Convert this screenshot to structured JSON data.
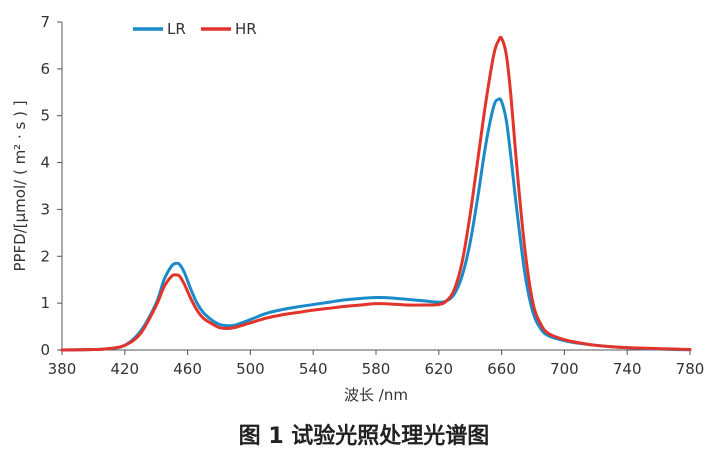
{
  "caption": "图 1 试验光照处理光谱图",
  "chart_data": {
    "type": "line",
    "xlabel": "波长 /nm",
    "ylabel": "PPFD/[μmol/ ( m² · s ) ]",
    "xlim": [
      380,
      780
    ],
    "ylim": [
      0,
      7
    ],
    "xticks": [
      380,
      420,
      460,
      500,
      540,
      580,
      620,
      660,
      700,
      740,
      780
    ],
    "yticks": [
      0,
      1,
      2,
      3,
      4,
      5,
      6,
      7
    ],
    "grid": false,
    "legend_position": "top-left",
    "series": [
      {
        "name": "LR",
        "color": "#1a8ac9",
        "x": [
          380,
          400,
          410,
          420,
          430,
          440,
          445,
          450,
          453,
          455,
          458,
          462,
          466,
          470,
          475,
          480,
          485,
          490,
          500,
          510,
          520,
          530,
          540,
          550,
          560,
          570,
          580,
          590,
          600,
          610,
          620,
          625,
          630,
          635,
          640,
          645,
          650,
          655,
          658,
          660,
          663,
          666,
          670,
          675,
          680,
          685,
          690,
          700,
          710,
          720,
          730,
          740,
          750,
          760,
          770,
          780
        ],
        "y": [
          0,
          0.01,
          0.03,
          0.1,
          0.4,
          1.0,
          1.5,
          1.8,
          1.85,
          1.82,
          1.65,
          1.3,
          1.0,
          0.8,
          0.65,
          0.55,
          0.52,
          0.53,
          0.65,
          0.78,
          0.86,
          0.92,
          0.97,
          1.02,
          1.07,
          1.1,
          1.12,
          1.11,
          1.08,
          1.05,
          1.02,
          1.05,
          1.2,
          1.6,
          2.3,
          3.3,
          4.4,
          5.2,
          5.35,
          5.3,
          4.9,
          4.1,
          2.9,
          1.6,
          0.8,
          0.45,
          0.3,
          0.2,
          0.14,
          0.1,
          0.07,
          0.05,
          0.03,
          0.02,
          0.01,
          0.005
        ]
      },
      {
        "name": "HR",
        "color": "#e2342a",
        "x": [
          380,
          400,
          410,
          420,
          430,
          440,
          445,
          450,
          453,
          455,
          458,
          462,
          466,
          470,
          475,
          480,
          485,
          490,
          500,
          510,
          520,
          530,
          540,
          550,
          560,
          570,
          580,
          590,
          600,
          610,
          620,
          625,
          630,
          635,
          640,
          645,
          650,
          655,
          658,
          660,
          663,
          666,
          670,
          675,
          680,
          685,
          690,
          700,
          710,
          720,
          730,
          740,
          750,
          760,
          770,
          780
        ],
        "y": [
          0,
          0.01,
          0.03,
          0.1,
          0.35,
          0.95,
          1.35,
          1.58,
          1.6,
          1.57,
          1.4,
          1.1,
          0.85,
          0.68,
          0.57,
          0.48,
          0.46,
          0.48,
          0.58,
          0.68,
          0.75,
          0.8,
          0.85,
          0.89,
          0.93,
          0.96,
          0.99,
          0.98,
          0.96,
          0.96,
          0.97,
          1.05,
          1.3,
          1.9,
          2.9,
          4.1,
          5.3,
          6.3,
          6.6,
          6.65,
          6.3,
          5.4,
          3.8,
          2.1,
          1.0,
          0.55,
          0.35,
          0.22,
          0.15,
          0.1,
          0.07,
          0.05,
          0.04,
          0.03,
          0.02,
          0.01
        ]
      }
    ]
  }
}
